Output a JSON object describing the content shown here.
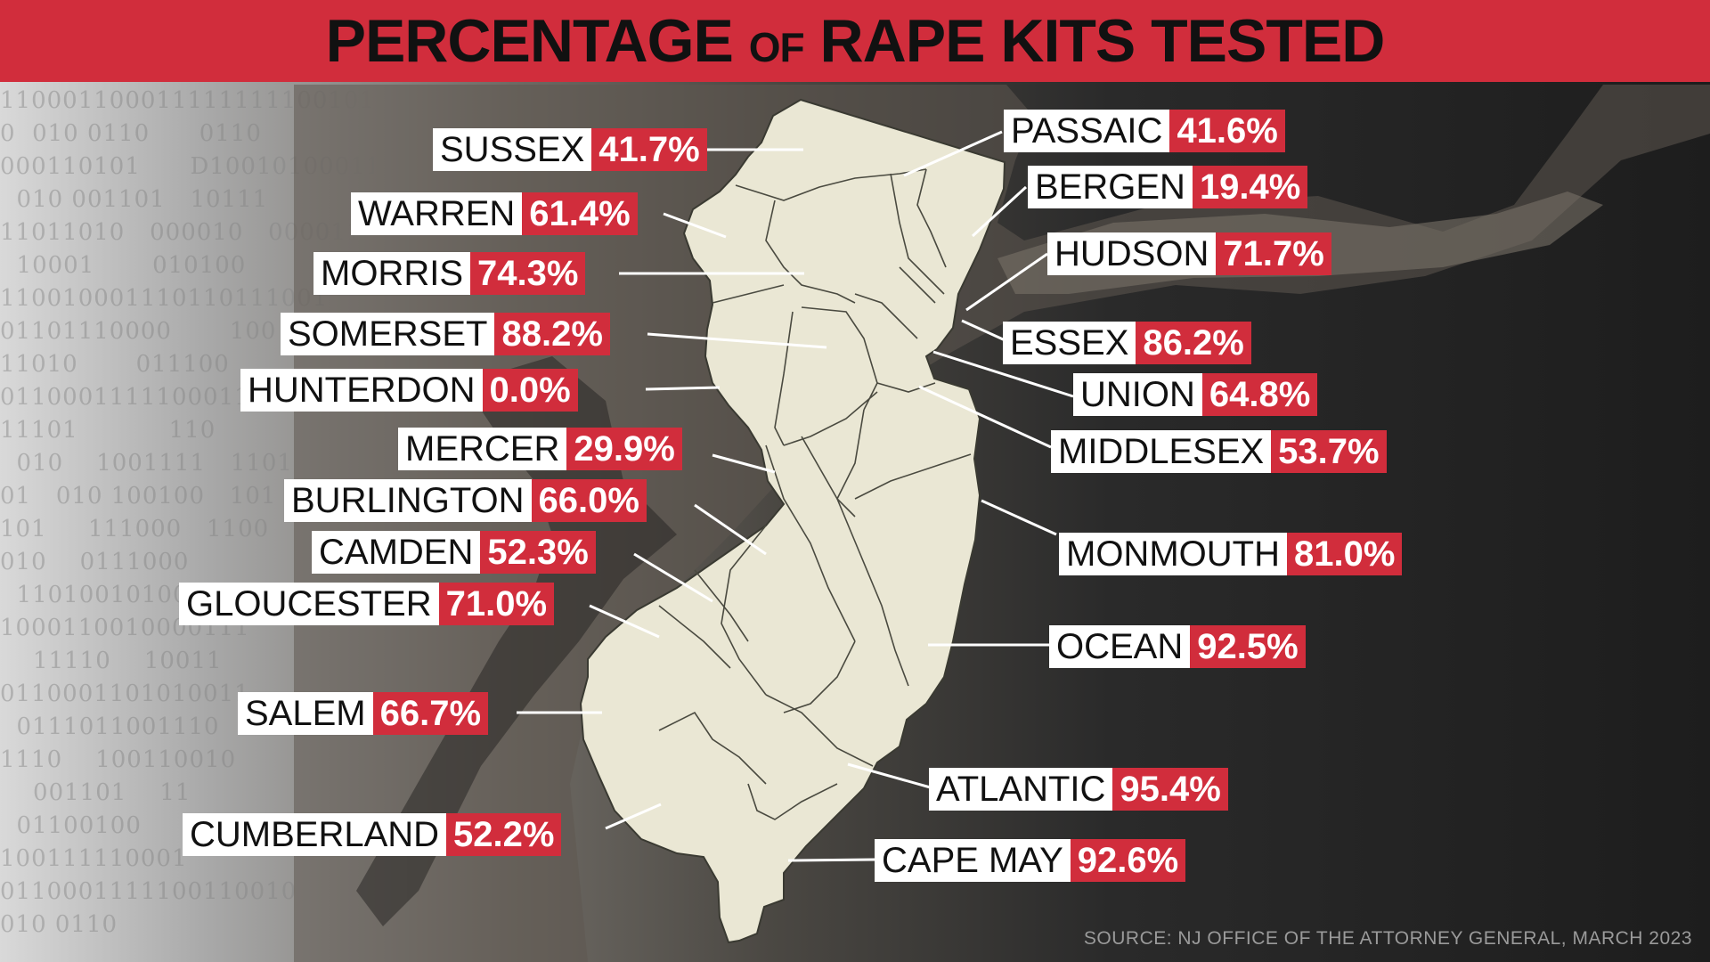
{
  "title": {
    "main": "PERCENTAGE",
    "connector": "OF",
    "rest": "RAPE KITS TESTED"
  },
  "source": "SOURCE: NJ OFFICE OF THE ATTORNEY GENERAL, MARCH 2023",
  "colors": {
    "accent": "#d12d3c",
    "land": "#eae7d4",
    "county_border": "#4a4a40",
    "leader_line": "#ffffff"
  },
  "binary_rows": [
    "110001100011111111100101",
    "0  010 0110      0110",
    "000110101      D10010100011",
    "  010 001101   10111",
    "11011010   000010   000011",
    "  10001       010100",
    "110010001110110111001",
    "01101110000       100",
    "11010       011100",
    "011000111110001100",
    "11101           110",
    "  010    1001111   1101",
    "01   010 100100   101",
    "101     111000   1100",
    "010    0111000",
    "  1101001010001",
    "1000110010000111",
    "    11110    10011",
    "0110001101010011",
    "  0111011001110",
    "1110    100110010",
    "    001101    11",
    "  01100100",
    "100111110001",
    "0110001111100110010",
    "010 0110"
  ],
  "counties": [
    {
      "name": "SUSSEX",
      "value": "41.7%"
    },
    {
      "name": "WARREN",
      "value": "61.4%"
    },
    {
      "name": "MORRIS",
      "value": "74.3%"
    },
    {
      "name": "SOMERSET",
      "value": "88.2%"
    },
    {
      "name": "HUNTERDON",
      "value": "0.0%"
    },
    {
      "name": "MERCER",
      "value": "29.9%"
    },
    {
      "name": "BURLINGTON",
      "value": "66.0%"
    },
    {
      "name": "CAMDEN",
      "value": "52.3%"
    },
    {
      "name": "GLOUCESTER",
      "value": "71.0%"
    },
    {
      "name": "SALEM",
      "value": "66.7%"
    },
    {
      "name": "CUMBERLAND",
      "value": "52.2%"
    },
    {
      "name": "PASSAIC",
      "value": "41.6%"
    },
    {
      "name": "BERGEN",
      "value": "19.4%"
    },
    {
      "name": "HUDSON",
      "value": "71.7%"
    },
    {
      "name": "ESSEX",
      "value": "86.2%"
    },
    {
      "name": "UNION",
      "value": "64.8%"
    },
    {
      "name": "MIDDLESEX",
      "value": "53.7%"
    },
    {
      "name": "MONMOUTH",
      "value": "81.0%"
    },
    {
      "name": "OCEAN",
      "value": "92.5%"
    },
    {
      "name": "ATLANTIC",
      "value": "95.4%"
    },
    {
      "name": "CAPE MAY",
      "value": "92.6%"
    }
  ]
}
